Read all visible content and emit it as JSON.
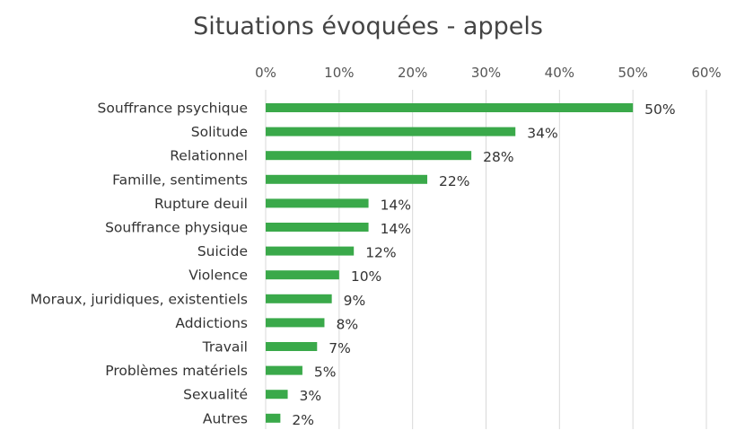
{
  "chart_data": {
    "type": "bar",
    "orientation": "horizontal",
    "title": "Situations évoquées - appels",
    "xlabel": "",
    "ylabel": "",
    "xlim": [
      0,
      60
    ],
    "x_ticks": [
      "0%",
      "10%",
      "20%",
      "30%",
      "40%",
      "50%",
      "60%"
    ],
    "x_tick_values": [
      0,
      10,
      20,
      30,
      40,
      50,
      60
    ],
    "grid": true,
    "legend": "none",
    "bar_color": "#3aa94a",
    "categories": [
      "Souffrance psychique",
      "Solitude",
      "Relationnel",
      "Famille, sentiments",
      "Rupture deuil",
      "Souffrance physique",
      "Suicide",
      "Violence",
      "Moraux, juridiques, existentiels",
      "Addictions",
      "Travail",
      "Problèmes matériels",
      "Sexualité",
      "Autres"
    ],
    "values": [
      50,
      34,
      28,
      22,
      14,
      14,
      12,
      10,
      9,
      8,
      7,
      5,
      3,
      2
    ],
    "data_labels": [
      "50%",
      "34%",
      "28%",
      "22%",
      "14%",
      "14%",
      "12%",
      "10%",
      "9%",
      "8%",
      "7%",
      "5%",
      "3%",
      "2%"
    ]
  }
}
